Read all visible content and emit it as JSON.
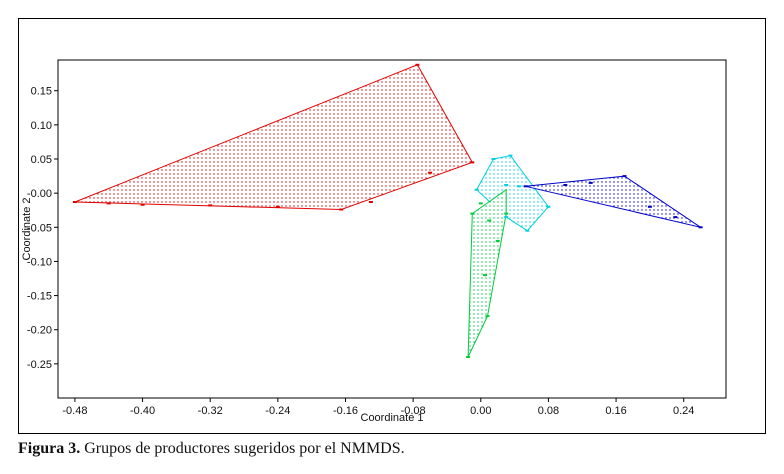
{
  "header": {
    "text": ""
  },
  "caption": {
    "label": "Figura 3.",
    "text": " Grupos de productores sugeridos por el NMMDS."
  },
  "chart_data": {
    "type": "scatter",
    "xlabel": "Coordinate 1",
    "ylabel": "Coordinate 2",
    "xlim": [
      -0.5,
      0.29
    ],
    "ylim": [
      -0.3,
      0.195
    ],
    "x_ticks": [
      -0.48,
      -0.4,
      -0.32,
      -0.24,
      -0.16,
      -0.08,
      0.0,
      0.08,
      0.16,
      0.24
    ],
    "y_ticks": [
      0.15,
      0.1,
      0.05,
      0.0,
      -0.05,
      -0.1,
      -0.15,
      -0.2,
      -0.25
    ],
    "x_tick_labels": [
      "-0.48",
      "-0.40",
      "-0.32",
      "-0.24",
      "-0.16",
      "-0.08",
      "0.00",
      "0.08",
      "0.16",
      "0.24"
    ],
    "y_tick_labels": [
      "0.15",
      "0.10",
      "0.05",
      "-0.00",
      "-0.05",
      "-0.10",
      "-0.15",
      "-0.20",
      "-0.25"
    ],
    "grid": false,
    "series": [
      {
        "color": "#e00000",
        "hull": [
          [
            -0.48,
            -0.013
          ],
          [
            -0.075,
            0.188
          ],
          [
            -0.01,
            0.045
          ],
          [
            -0.165,
            -0.024
          ]
        ],
        "points": [
          [
            -0.48,
            -0.013
          ],
          [
            -0.44,
            -0.015
          ],
          [
            -0.4,
            -0.017
          ],
          [
            -0.32,
            -0.018
          ],
          [
            -0.24,
            -0.02
          ],
          [
            -0.165,
            -0.024
          ],
          [
            -0.13,
            -0.013
          ],
          [
            -0.075,
            0.188
          ],
          [
            -0.06,
            0.03
          ],
          [
            -0.01,
            0.045
          ]
        ]
      },
      {
        "color": "#00d0e0",
        "hull": [
          [
            -0.005,
            0.005
          ],
          [
            0.015,
            0.05
          ],
          [
            0.035,
            0.055
          ],
          [
            0.08,
            -0.02
          ],
          [
            0.055,
            -0.055
          ],
          [
            0.03,
            -0.035
          ]
        ],
        "points": [
          [
            -0.005,
            0.005
          ],
          [
            0.015,
            0.05
          ],
          [
            0.035,
            0.055
          ],
          [
            0.08,
            -0.02
          ],
          [
            0.055,
            -0.055
          ],
          [
            0.03,
            -0.035
          ],
          [
            0.03,
            0.012
          ],
          [
            0.045,
            0.01
          ]
        ]
      },
      {
        "color": "#0000cc",
        "hull": [
          [
            0.053,
            0.01
          ],
          [
            0.17,
            0.025
          ],
          [
            0.26,
            -0.05
          ]
        ],
        "points": [
          [
            0.053,
            0.01
          ],
          [
            0.1,
            0.012
          ],
          [
            0.13,
            0.015
          ],
          [
            0.17,
            0.025
          ],
          [
            0.2,
            -0.02
          ],
          [
            0.23,
            -0.035
          ],
          [
            0.26,
            -0.05
          ]
        ]
      },
      {
        "color": "#00cc40",
        "hull": [
          [
            -0.015,
            -0.24
          ],
          [
            -0.01,
            -0.03
          ],
          [
            0.03,
            0.005
          ],
          [
            0.03,
            -0.03
          ],
          [
            0.008,
            -0.18
          ]
        ],
        "points": [
          [
            -0.015,
            -0.24
          ],
          [
            -0.01,
            -0.03
          ],
          [
            0.0,
            -0.015
          ],
          [
            0.01,
            -0.04
          ],
          [
            0.02,
            -0.07
          ],
          [
            0.03,
            -0.03
          ],
          [
            0.008,
            -0.18
          ],
          [
            0.005,
            -0.12
          ]
        ]
      }
    ]
  }
}
